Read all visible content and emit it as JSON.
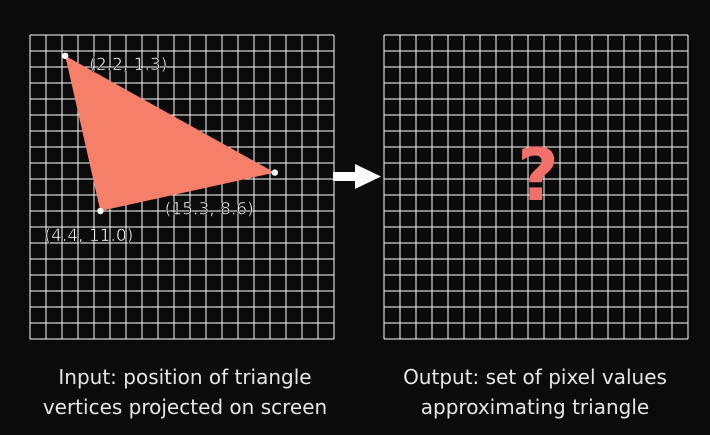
{
  "colors": {
    "background": "#0b0b0b",
    "grid": "#ffffff",
    "triangle": "#f57f68",
    "question": "#f0706a",
    "arrow": "#ffffff"
  },
  "input_panel": {
    "vertices": [
      {
        "label": "(2.2, 1.3)",
        "x": 2.2,
        "y": 1.3
      },
      {
        "label": "(15.3, 8.6)",
        "x": 15.3,
        "y": 8.6
      },
      {
        "label": "(4.4, 11.0)",
        "x": 4.4,
        "y": 11.0
      }
    ],
    "caption_line1": "Input: position of triangle",
    "caption_line2": "vertices projected on screen"
  },
  "output_panel": {
    "question_mark": "?",
    "caption_line1": "Output: set of pixel values",
    "caption_line2": "approximating triangle"
  },
  "arrow_icon": "right-arrow-icon"
}
